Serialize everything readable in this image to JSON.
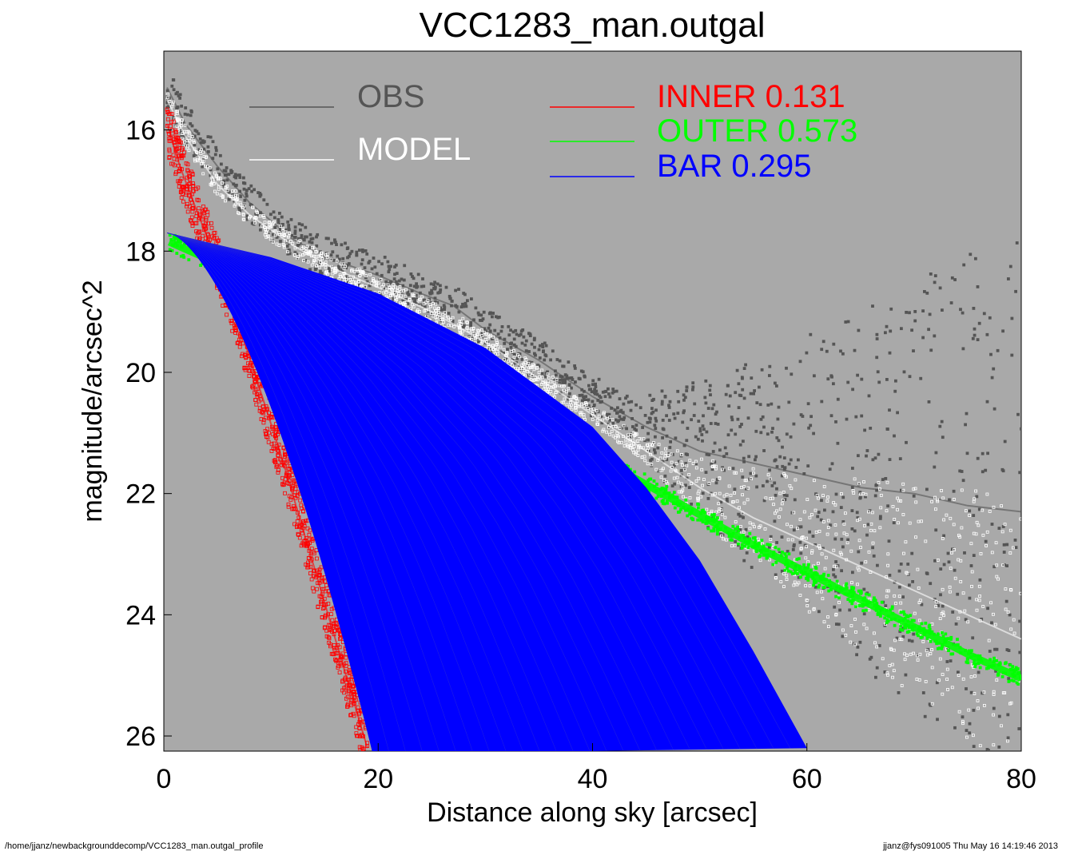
{
  "footer": {
    "left": "/home/jjanz/newbackgrounddecomp/VCC1283_man.outgal_profile",
    "right": "jjanz@fys091005  Thu May 16 14:19:46 2013"
  },
  "chart_data": {
    "type": "scatter",
    "title": "VCC1283_man.outgal",
    "xlabel": "Distance along sky [arcsec]",
    "ylabel": "magnitude/arcsec^2",
    "xlim": [
      0,
      80
    ],
    "ylim": [
      26.25,
      14.7
    ],
    "y_inverted": true,
    "xticks": [
      "0",
      "20",
      "40",
      "60",
      "80"
    ],
    "yticks": [
      "16",
      "18",
      "20",
      "22",
      "24",
      "26"
    ],
    "background": "#a9a9a9",
    "grid": false,
    "legend_position": "top",
    "series": [
      {
        "name": "OBS",
        "color": "#555555",
        "x": [
          0.3,
          2,
          5,
          8,
          12,
          15,
          20,
          24,
          27,
          30,
          35,
          40,
          45,
          50,
          55,
          60,
          65,
          70,
          75,
          80
        ],
        "y": [
          15.3,
          15.9,
          16.6,
          17.2,
          17.8,
          18.1,
          18.4,
          18.7,
          18.9,
          19.3,
          19.8,
          20.4,
          20.9,
          21.3,
          21.5,
          21.7,
          21.9,
          22.0,
          22.2,
          22.3
        ]
      },
      {
        "name": "MODEL",
        "color": "#ffffff",
        "x": [
          0.3,
          2,
          5,
          8,
          12,
          16,
          20,
          25,
          30,
          35,
          40,
          45,
          50,
          55,
          60,
          65,
          70,
          75,
          80
        ],
        "y": [
          15.5,
          16.1,
          16.9,
          17.4,
          17.9,
          18.3,
          18.6,
          19.0,
          19.5,
          20.1,
          20.7,
          21.3,
          21.9,
          22.4,
          22.8,
          23.2,
          23.6,
          24.0,
          24.4
        ]
      },
      {
        "name": "INNER",
        "label": "INNER  0.131",
        "color": "#ff0000",
        "x": [
          0.3,
          1.5,
          3,
          5,
          7,
          9,
          11,
          13,
          15,
          17,
          19
        ],
        "y": [
          15.9,
          16.6,
          17.3,
          18.2,
          19.2,
          20.3,
          21.4,
          22.6,
          23.8,
          25.0,
          26.2
        ]
      },
      {
        "name": "OUTER",
        "label": "OUTER  0.573",
        "color": "#00ff00",
        "x": [
          0.5,
          5,
          10,
          20,
          30,
          40,
          45,
          50,
          55,
          60,
          65,
          70,
          75,
          80
        ],
        "y": [
          17.85,
          18.2,
          18.55,
          19.25,
          20.1,
          21.35,
          21.85,
          22.35,
          22.85,
          23.3,
          23.75,
          24.2,
          24.65,
          25.05
        ]
      },
      {
        "name": "BAR",
        "label": "BAR  0.295",
        "color": "#0000ff",
        "x": [
          0.3,
          10,
          20,
          30,
          40,
          45,
          50,
          55,
          60
        ],
        "y": [
          17.7,
          18.1,
          18.7,
          19.6,
          20.9,
          21.9,
          23.1,
          24.6,
          26.2
        ]
      }
    ]
  }
}
